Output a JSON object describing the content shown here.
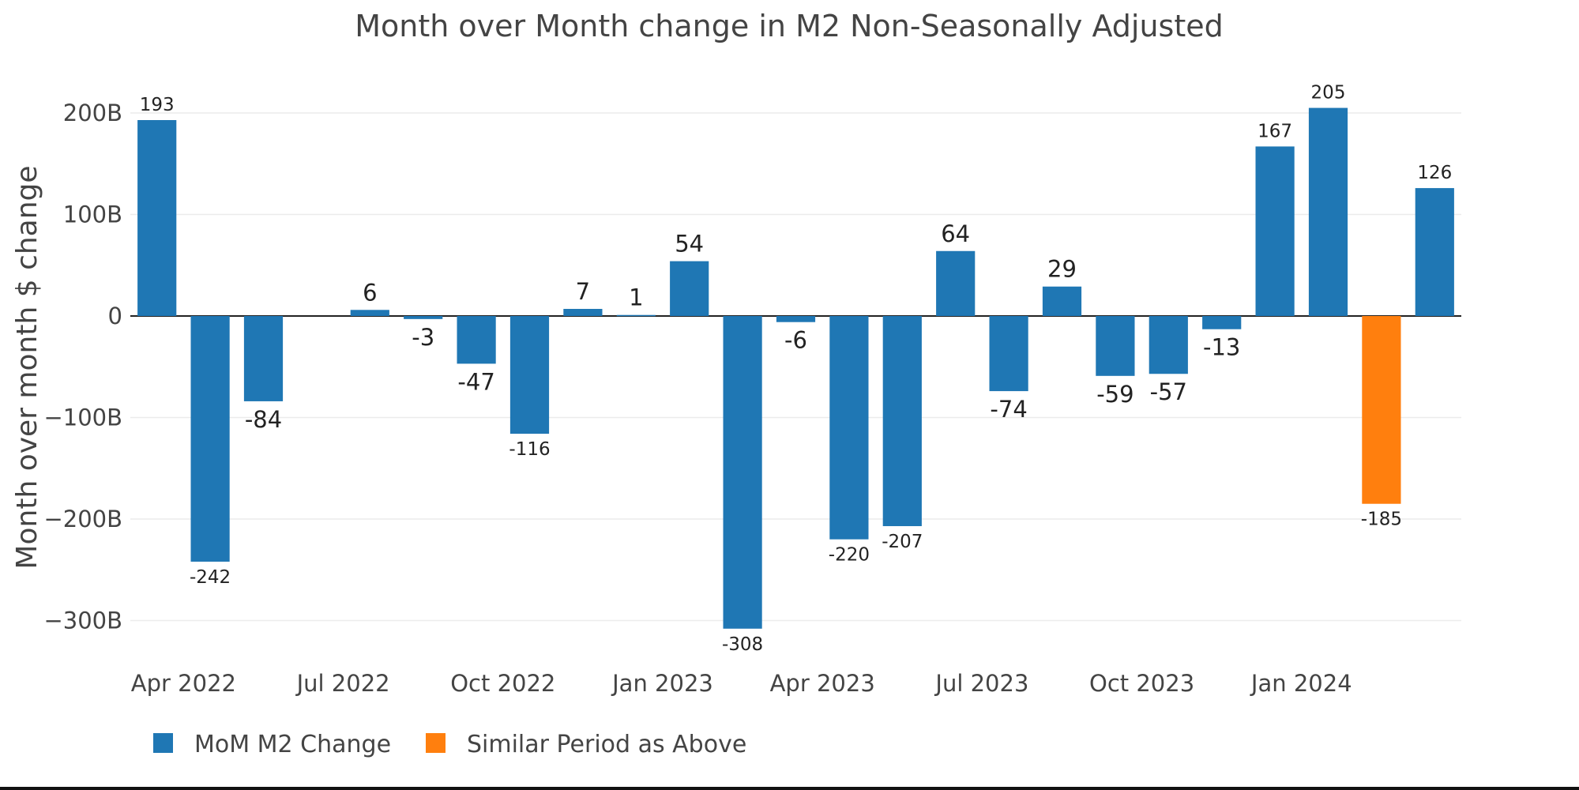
{
  "chart_data": {
    "type": "bar",
    "title": "Month over Month change in M2 Non-Seasonally Adjusted",
    "xlabel": "",
    "ylabel": "Month over month $ change",
    "ylim": [
      -340,
      225
    ],
    "yticks": [
      200,
      100,
      0,
      -100,
      -200,
      -300
    ],
    "ytick_labels": [
      "200B",
      "100B",
      "0",
      "−100B",
      "−200B",
      "−300B"
    ],
    "xticks": [
      {
        "label": "Apr 2022",
        "index": 0
      },
      {
        "label": "Jul 2022",
        "index": 3
      },
      {
        "label": "Oct 2022",
        "index": 6
      },
      {
        "label": "Jan 2023",
        "index": 9
      },
      {
        "label": "Apr 2023",
        "index": 12
      },
      {
        "label": "Jul 2023",
        "index": 15
      },
      {
        "label": "Oct 2023",
        "index": 18
      },
      {
        "label": "Jan 2024",
        "index": 21
      }
    ],
    "grid": true,
    "legend_position": "bottom-left",
    "series": [
      {
        "name": "MoM M2 Change",
        "color": "#1f77b4",
        "values": [
          193,
          -242,
          -84,
          null,
          6,
          -3,
          -47,
          -116,
          7,
          1,
          54,
          -308,
          -6,
          -220,
          -207,
          64,
          -74,
          29,
          -59,
          -57,
          -13,
          167,
          205,
          null,
          126
        ]
      },
      {
        "name": "Similar Period as Above",
        "color": "#ff7f0e",
        "values": [
          null,
          null,
          null,
          null,
          null,
          null,
          null,
          null,
          null,
          null,
          null,
          null,
          null,
          null,
          null,
          null,
          null,
          null,
          null,
          null,
          null,
          null,
          null,
          -185,
          null
        ]
      }
    ],
    "data_labels": [
      "193",
      "-242",
      "-84",
      "",
      "6",
      "-3",
      "-47",
      "-116",
      "7",
      "1",
      "54",
      "-308",
      "-6",
      "-220",
      "-207",
      "64",
      "-74",
      "29",
      "-59",
      "-57",
      "-13",
      "167",
      "205",
      "-185",
      "126"
    ]
  }
}
